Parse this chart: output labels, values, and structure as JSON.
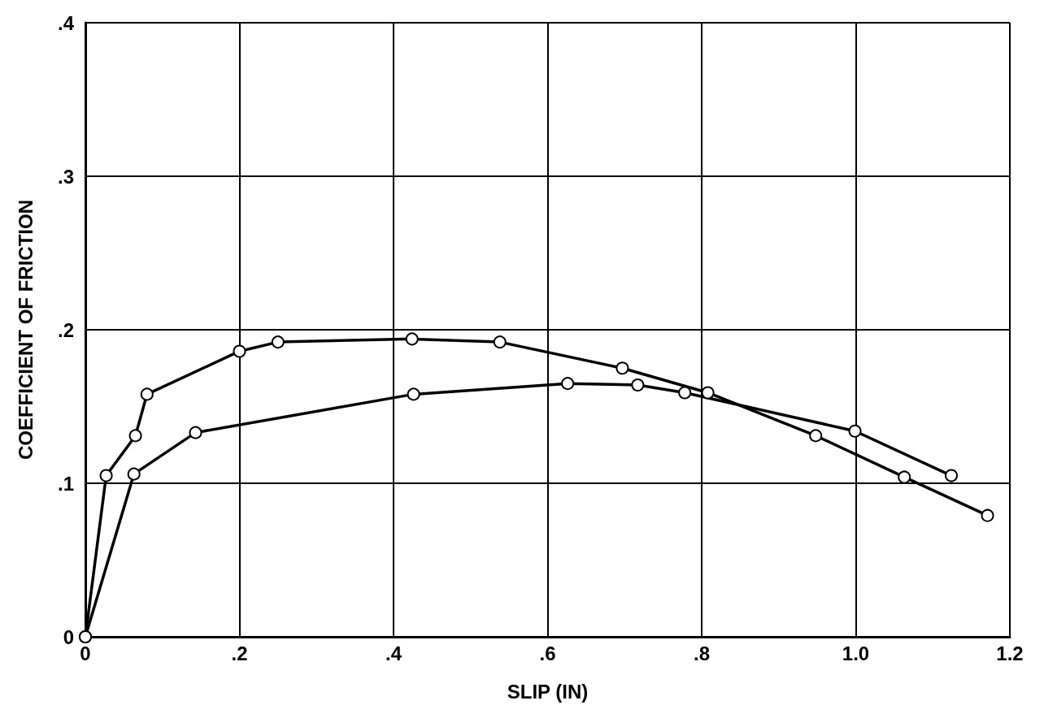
{
  "chart_data": {
    "type": "line",
    "xlabel": "SLIP (IN)",
    "ylabel": "COEFFICIENT OF FRICTION",
    "xlim": [
      0,
      1.2
    ],
    "ylim": [
      0,
      0.4
    ],
    "xticks": [
      {
        "value": 0,
        "label": "0"
      },
      {
        "value": 0.2,
        "label": ".2"
      },
      {
        "value": 0.4,
        "label": ".4"
      },
      {
        "value": 0.6,
        "label": ".6"
      },
      {
        "value": 0.8,
        "label": ".8"
      },
      {
        "value": 1.0,
        "label": "1.0"
      },
      {
        "value": 1.2,
        "label": "1.2"
      }
    ],
    "yticks": [
      {
        "value": 0,
        "label": "0"
      },
      {
        "value": 0.1,
        "label": ".1"
      },
      {
        "value": 0.2,
        "label": ".2"
      },
      {
        "value": 0.3,
        "label": ".3"
      },
      {
        "value": 0.4,
        "label": ".4"
      }
    ],
    "grid": true,
    "marker": "circle",
    "line_style": "solid",
    "series": [
      {
        "color": "#000000",
        "x": [
          0,
          0.027,
          0.065,
          0.08,
          0.2,
          0.25,
          0.424,
          0.538,
          0.697,
          0.808,
          0.948,
          1.063,
          1.171
        ],
        "values": [
          0,
          0.105,
          0.131,
          0.158,
          0.186,
          0.192,
          0.194,
          0.192,
          0.175,
          0.159,
          0.131,
          0.104,
          0.079
        ]
      },
      {
        "color": "#000000",
        "x": [
          0,
          0.063,
          0.143,
          0.426,
          0.626,
          0.717,
          0.778,
          0.999,
          1.124
        ],
        "values": [
          0,
          0.106,
          0.133,
          0.158,
          0.165,
          0.164,
          0.159,
          0.134,
          0.105
        ]
      }
    ]
  }
}
